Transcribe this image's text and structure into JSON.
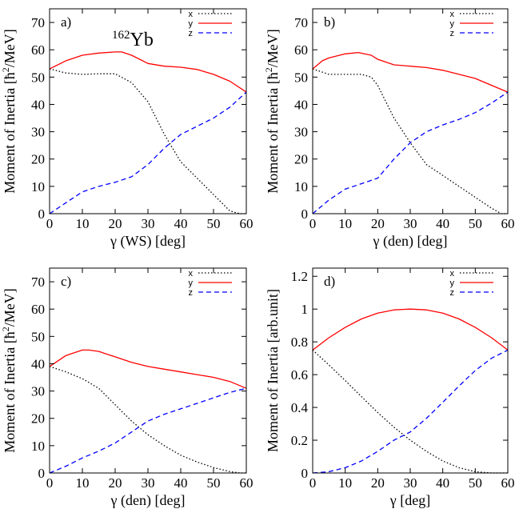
{
  "figure": {
    "nucleus_label": "Yb",
    "nucleus_mass": "162"
  },
  "chart_data": [
    {
      "type": "line",
      "panel_label": "a)",
      "xlabel": "γ (WS) [deg]",
      "ylabel": "Moment of Inertia [ħ²/MeV]",
      "xlim": [
        0,
        60
      ],
      "ylim": [
        0,
        75
      ],
      "xticks": [
        0,
        10,
        20,
        30,
        40,
        50,
        60
      ],
      "yticks": [
        0,
        10,
        20,
        30,
        40,
        50,
        60,
        70
      ],
      "legend_position": "top-right",
      "series": [
        {
          "name": "x",
          "color": "#000000",
          "style": "dotted",
          "x": [
            0,
            5,
            10,
            15,
            20,
            25,
            30,
            35,
            40,
            45,
            50,
            55,
            58,
            60
          ],
          "y": [
            53,
            51.5,
            51,
            51.2,
            51.2,
            48,
            41,
            29,
            19,
            13,
            7,
            1,
            0,
            0
          ]
        },
        {
          "name": "y",
          "color": "#ff0000",
          "style": "solid",
          "x": [
            0,
            5,
            10,
            15,
            20,
            22,
            25,
            30,
            35,
            40,
            45,
            50,
            55,
            60
          ],
          "y": [
            53,
            56,
            58,
            58.8,
            59.2,
            59.2,
            58,
            55,
            54,
            53.6,
            52.8,
            51,
            48.5,
            44.5
          ]
        },
        {
          "name": "z",
          "color": "#0000ff",
          "style": "dashed",
          "x": [
            0,
            5,
            10,
            15,
            20,
            25,
            30,
            35,
            40,
            45,
            50,
            55,
            60
          ],
          "y": [
            0,
            4,
            8,
            10,
            11.5,
            13.5,
            18,
            24,
            29,
            32,
            35,
            39,
            44.5
          ]
        }
      ]
    },
    {
      "type": "line",
      "panel_label": "b)",
      "xlabel": "γ (den) [deg]",
      "ylabel": "Moment of Inertia [ħ²/MeV]",
      "xlim": [
        0,
        60
      ],
      "ylim": [
        0,
        75
      ],
      "xticks": [
        0,
        10,
        20,
        30,
        40,
        50,
        60
      ],
      "yticks": [
        0,
        10,
        20,
        30,
        40,
        50,
        60,
        70
      ],
      "legend_position": "top-right",
      "series": [
        {
          "name": "x",
          "color": "#000000",
          "style": "dotted",
          "x": [
            0,
            5,
            10,
            15,
            18,
            20,
            25,
            30,
            35,
            40,
            45,
            50,
            55,
            58,
            60
          ],
          "y": [
            53,
            51,
            51,
            51,
            50,
            47,
            35,
            26,
            18,
            14,
            10,
            6,
            2,
            0,
            0
          ]
        },
        {
          "name": "y",
          "color": "#ff0000",
          "style": "solid",
          "x": [
            0,
            3,
            5,
            10,
            14,
            18,
            20,
            25,
            30,
            35,
            40,
            45,
            50,
            55,
            60
          ],
          "y": [
            53,
            56,
            57,
            58.5,
            59,
            58,
            56.5,
            54.5,
            54,
            53.5,
            52.5,
            51,
            49.5,
            47,
            44.5
          ]
        },
        {
          "name": "z",
          "color": "#0000ff",
          "style": "dashed",
          "x": [
            0,
            5,
            10,
            15,
            20,
            25,
            30,
            35,
            40,
            45,
            50,
            55,
            60
          ],
          "y": [
            0,
            5,
            9,
            11,
            13,
            20,
            26,
            30,
            32.5,
            34.5,
            37,
            40.5,
            44.5
          ]
        }
      ]
    },
    {
      "type": "line",
      "panel_label": "c)",
      "xlabel": "γ (den) [deg]",
      "ylabel": "Moment of Inertia [ħ²/MeV]",
      "xlim": [
        0,
        60
      ],
      "ylim": [
        0,
        75
      ],
      "xticks": [
        0,
        10,
        20,
        30,
        40,
        50,
        60
      ],
      "yticks": [
        0,
        10,
        20,
        30,
        40,
        50,
        60,
        70
      ],
      "legend_position": "top-right",
      "series": [
        {
          "name": "x",
          "color": "#000000",
          "style": "dotted",
          "x": [
            0,
            5,
            10,
            15,
            20,
            25,
            30,
            35,
            40,
            45,
            50,
            55,
            58,
            60
          ],
          "y": [
            39,
            37,
            34.5,
            31,
            25,
            19,
            14,
            10,
            6.5,
            4,
            2,
            0.5,
            0,
            0
          ]
        },
        {
          "name": "y",
          "color": "#ff0000",
          "style": "solid",
          "x": [
            0,
            5,
            10,
            12,
            15,
            20,
            25,
            30,
            35,
            40,
            45,
            50,
            55,
            60
          ],
          "y": [
            39,
            43,
            45,
            45,
            44.5,
            42.5,
            40.5,
            39,
            38,
            37,
            36,
            35,
            33.5,
            31
          ]
        },
        {
          "name": "z",
          "color": "#0000ff",
          "style": "dashed",
          "x": [
            0,
            5,
            10,
            15,
            20,
            25,
            30,
            35,
            40,
            45,
            50,
            55,
            60
          ],
          "y": [
            0,
            2.5,
            5.5,
            8,
            11,
            15,
            19,
            21.5,
            23.5,
            25.5,
            27.5,
            29.5,
            31
          ]
        }
      ]
    },
    {
      "type": "line",
      "panel_label": "d)",
      "xlabel": "γ [deg]",
      "ylabel": "Moment of Inertia [arb.unit]",
      "xlim": [
        0,
        60
      ],
      "ylim": [
        0,
        1.25
      ],
      "xticks": [
        0,
        10,
        20,
        30,
        40,
        50,
        60
      ],
      "yticks": [
        0,
        0.2,
        0.4,
        0.6,
        0.8,
        1,
        1.2
      ],
      "legend_position": "top-right",
      "series": [
        {
          "name": "x",
          "color": "#000000",
          "style": "dotted",
          "x": [
            0,
            5,
            10,
            15,
            20,
            25,
            30,
            35,
            40,
            45,
            50,
            55,
            60
          ],
          "y": [
            0.75,
            0.659,
            0.564,
            0.466,
            0.369,
            0.279,
            0.2,
            0.132,
            0.073,
            0.032,
            0.008,
            0,
            0
          ]
        },
        {
          "name": "y",
          "color": "#ff0000",
          "style": "solid",
          "x": [
            0,
            5,
            10,
            15,
            20,
            25,
            30,
            35,
            40,
            45,
            50,
            55,
            60
          ],
          "y": [
            0.75,
            0.825,
            0.888,
            0.94,
            0.975,
            0.995,
            1,
            0.995,
            0.975,
            0.94,
            0.888,
            0.825,
            0.75
          ]
        },
        {
          "name": "z",
          "color": "#0000ff",
          "style": "dashed",
          "x": [
            0,
            5,
            10,
            15,
            20,
            25,
            30,
            35,
            40,
            45,
            50,
            55,
            60
          ],
          "y": [
            0,
            0.008,
            0.032,
            0.073,
            0.132,
            0.2,
            0.25,
            0.334,
            0.431,
            0.531,
            0.625,
            0.7,
            0.75
          ]
        }
      ]
    }
  ]
}
